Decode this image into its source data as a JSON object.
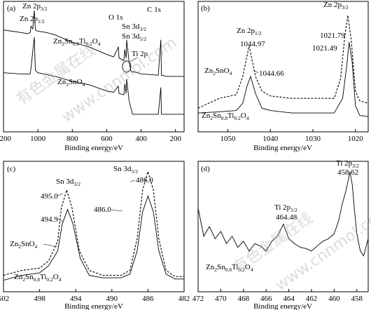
{
  "chart_data": [
    {
      "panel": "(a)",
      "type": "line",
      "xlabel": "Binding energy/eV",
      "xlim": [
        1200,
        150
      ],
      "xticks": [
        1200,
        1000,
        800,
        600,
        400,
        200
      ],
      "ylim": [
        0,
        100
      ],
      "series": [
        {
          "name": "Zn2Sn0.8Ti0.2O4",
          "style": "solid",
          "x": [
            1200,
            1150,
            1100,
            1060,
            1045,
            1040,
            1030,
            1021,
            1015,
            1000,
            950,
            900,
            800,
            700,
            600,
            560,
            532,
            528,
            500,
            495,
            487,
            484,
            470,
            460,
            455,
            420,
            400,
            300,
            285,
            282,
            250,
            200,
            150
          ],
          "y": [
            80,
            79,
            78,
            77,
            78,
            83,
            81,
            96,
            80,
            79,
            78,
            76,
            70,
            66,
            60,
            58,
            66,
            57,
            55,
            64,
            57,
            72,
            54,
            47,
            46,
            45,
            44,
            43,
            72,
            43,
            42,
            42,
            42
          ]
        },
        {
          "name": "Zn2SnO4",
          "style": "solid",
          "x": [
            1200,
            1100,
            1045,
            1040,
            1021,
            1015,
            1000,
            900,
            800,
            700,
            600,
            560,
            532,
            528,
            500,
            495,
            487,
            484,
            470,
            450,
            400,
            300,
            285,
            282,
            200,
            150
          ],
          "y": [
            45,
            44,
            44,
            49,
            74,
            47,
            45,
            42,
            38,
            35,
            30,
            29,
            34,
            28,
            27,
            36,
            28,
            40,
            22,
            11,
            11,
            11,
            33,
            11,
            11,
            11
          ]
        }
      ]
    },
    {
      "panel": "(b)",
      "type": "line",
      "xlabel": "Binding energy/eV",
      "xlim": [
        1057,
        1017
      ],
      "xticks": [
        1050,
        1040,
        1030,
        1020
      ],
      "ylim": [
        0,
        100
      ],
      "series": [
        {
          "name": "Zn2SnO4",
          "style": "dashed",
          "x": [
            1057,
            1052,
            1048,
            1046.5,
            1045,
            1043.5,
            1042,
            1040,
            1035,
            1030,
            1025,
            1023.5,
            1022.5,
            1021.79,
            1021,
            1020,
            1019,
            1017
          ],
          "y": [
            16,
            24,
            27,
            42,
            67,
            42,
            30,
            26,
            24,
            24,
            24,
            40,
            75,
            92,
            72,
            30,
            22,
            20
          ]
        },
        {
          "name": "Zn2Sn0.8Ti0.2O4",
          "style": "solid",
          "x": [
            1057,
            1052,
            1048,
            1046.5,
            1045.5,
            1044.66,
            1043.5,
            1042,
            1040,
            1035,
            1030,
            1025,
            1023,
            1022,
            1021.49,
            1020.8,
            1020,
            1019,
            1017
          ],
          "y": [
            12,
            13,
            14,
            20,
            34,
            42,
            28,
            16,
            14,
            12,
            12,
            12,
            24,
            52,
            70,
            55,
            18,
            10,
            9
          ]
        }
      ]
    },
    {
      "panel": "(c)",
      "type": "line",
      "xlabel": "Binding energy/eV",
      "xlim": [
        502,
        482
      ],
      "xticks": [
        502,
        498,
        494,
        490,
        486,
        482
      ],
      "ylim": [
        0,
        100
      ],
      "series": [
        {
          "name": "Zn2SnO4",
          "style": "dashed",
          "x": [
            502,
            500,
            498,
            497,
            496,
            495.6,
            495.0,
            494.4,
            493.6,
            492.5,
            491,
            489,
            488,
            487.2,
            486.6,
            486.0,
            485.4,
            484.8,
            484,
            483,
            482
          ],
          "y": [
            10,
            14,
            16,
            22,
            38,
            65,
            80,
            65,
            30,
            14,
            10,
            10,
            14,
            40,
            80,
            95,
            80,
            40,
            14,
            9,
            9
          ]
        },
        {
          "name": "Zn2Sn0.8Ti0.2O4",
          "style": "solid",
          "x": [
            502,
            500,
            498,
            497,
            496,
            495.5,
            494.9,
            494.3,
            493.5,
            492.5,
            491,
            489,
            488,
            487.2,
            486.6,
            486.0,
            485.4,
            484.8,
            484,
            483,
            482
          ],
          "y": [
            6,
            10,
            12,
            18,
            30,
            52,
            64,
            52,
            24,
            10,
            8,
            8,
            11,
            30,
            62,
            75,
            62,
            30,
            11,
            7,
            7
          ]
        }
      ]
    },
    {
      "panel": "(d)",
      "type": "line",
      "xlabel": "Binding energy/eV",
      "xlim": [
        472,
        457
      ],
      "xticks": [
        472,
        470,
        468,
        466,
        464,
        462,
        460,
        458
      ],
      "ylim": [
        0,
        100
      ],
      "series": [
        {
          "name": "Zn2Sn0.8Ti0.2O4",
          "style": "solid",
          "x": [
            472,
            471.5,
            471,
            470.5,
            470,
            469.5,
            469,
            468.5,
            468,
            467.5,
            467,
            466.5,
            466,
            465.5,
            465,
            464.48,
            464,
            463.5,
            463,
            462.5,
            462,
            461.5,
            461,
            460.5,
            460,
            459.6,
            459.3,
            459,
            458.8,
            458.62,
            458.4,
            458.2,
            458,
            457.7,
            457.4,
            457
          ],
          "y": [
            65,
            42,
            50,
            40,
            46,
            36,
            42,
            33,
            38,
            30,
            36,
            34,
            30,
            38,
            42,
            52,
            40,
            36,
            33,
            32,
            30,
            34,
            38,
            40,
            44,
            55,
            68,
            78,
            86,
            95,
            84,
            62,
            44,
            30,
            26,
            40
          ]
        }
      ]
    }
  ],
  "panels": {
    "a": {
      "label": "(a)",
      "peak_labels": {
        "zn2p32_main": "Zn 2p",
        "zn2p32_sub": "3/2",
        "zn2p12_main": "Zn 2p",
        "zn2p12_sub": "1/2",
        "o1s": "O 1s",
        "c1s": "C 1s",
        "sn3d32_main": "Sn 3d",
        "sn3d32_sub": "3/2",
        "sn3d52_main": "Sn 3d",
        "sn3d52_sub": "5/2",
        "ti2p": "Ti 2p"
      },
      "sample_labels": {
        "ztso_1": "Zn",
        "ztso_s1": "2",
        "ztso_2": "Sn",
        "ztso_s2": "0.8",
        "ztso_3": "Ti",
        "ztso_s3": "0.2",
        "ztso_4": "O",
        "ztso_s4": "4",
        "zso_1": "Zn",
        "zso_s1": "2",
        "zso_2": "SnO",
        "zso_s2": "4"
      }
    },
    "b": {
      "label": "(b)",
      "zn2p12_main": "Zn 2p",
      "zn2p12_sub": "1/2",
      "zn2p32_main": "Zn 2p",
      "zn2p32_sub": "3/2",
      "v1": "1044.97",
      "v2": "1021.79",
      "v3": "1021.49",
      "v4": "1044.66",
      "zso_1": "Zn",
      "zso_s1": "2",
      "zso_2": "SnO",
      "zso_s2": "4",
      "ztso_1": "Zn",
      "ztso_s1": "2",
      "ztso_2": "Sn",
      "ztso_s2": "0.8",
      "ztso_3": "Ti",
      "ztso_s3": "0.2",
      "ztso_4": "O",
      "ztso_s4": "4"
    },
    "c": {
      "label": "(c)",
      "sn3d32_main": "Sn 3d",
      "sn3d32_sub": "3/2",
      "sn3d52_main": "Sn 3d",
      "sn3d52_sub": "5/2",
      "v1": "495.0",
      "v2": "486.0",
      "v3": "494.9",
      "v4": "486.0",
      "zso_1": "Zn",
      "zso_s1": "2",
      "zso_2": "SnO",
      "zso_s2": "4",
      "ztso_1": "Zn",
      "ztso_s1": "2",
      "ztso_2": "Sn",
      "ztso_s2": "0.8",
      "ztso_3": "Ti",
      "ztso_s3": "0.2",
      "ztso_4": "O",
      "ztso_s4": "4"
    },
    "d": {
      "label": "(d)",
      "ti2p32_main": "Ti 2p",
      "ti2p32_sub": "3/2",
      "ti2p12_main": "Ti 2p",
      "ti2p12_sub": "1/2",
      "v1": "458.62",
      "v2": "464.48",
      "ztso_1": "Zn",
      "ztso_s1": "2",
      "ztso_2": "Sn",
      "ztso_s2": "0.8",
      "ztso_3": "Ti",
      "ztso_s3": "0.2",
      "ztso_4": "O",
      "ztso_s4": "4"
    }
  },
  "watermark": {
    "text_cn": "有色金属在线",
    "text_url": "www.cnnmol.com",
    "color": "#9a9a9a"
  }
}
